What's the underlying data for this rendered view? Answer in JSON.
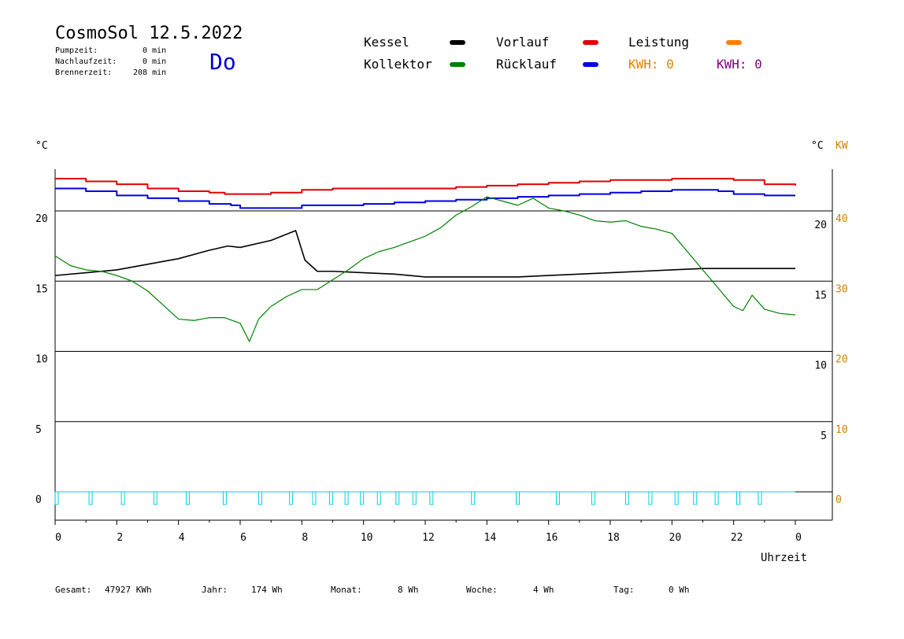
{
  "header": {
    "title": "CosmoSol 12.5.2022",
    "day": "Do",
    "pumpzeit_label": "Pumpzeit:",
    "pumpzeit_value": "0 min",
    "nachlauf_label": "Nachlaufzeit:",
    "nachlauf_value": "0 min",
    "brenner_label": "Brennerzeit:",
    "brenner_value": "208 min"
  },
  "legend": {
    "kessel": {
      "label": "Kessel",
      "color": "#000000"
    },
    "kollektor": {
      "label": "Kollektor",
      "color": "#008000"
    },
    "vorlauf": {
      "label": "Vorlauf",
      "color": "#e00000"
    },
    "ruecklauf": {
      "label": "Rücklauf",
      "color": "#0000e0"
    },
    "leistung": {
      "label": "Leistung",
      "color": "#ff8000"
    },
    "kwh1": {
      "label": "KWH: 0",
      "color": "#e08000"
    },
    "kwh2": {
      "label": "KWH: 0",
      "color": "#800080"
    }
  },
  "axes": {
    "left_unit": "°C",
    "right_unit": "°C",
    "right_unit2": "KW",
    "xlabel": "Uhrzeit"
  },
  "footer": {
    "gesamt_label": "Gesamt:",
    "gesamt_value": "47927 KWh",
    "jahr_label": "Jahr:",
    "jahr_value": "174 Wh",
    "monat_label": "Monat:",
    "monat_value": "8 Wh",
    "woche_label": "Woche:",
    "woche_value": "4 Wh",
    "tag_label": "Tag:",
    "tag_value": "0 Wh"
  },
  "chart_data": {
    "type": "line",
    "x_ticks": [
      "0",
      "2",
      "4",
      "6",
      "8",
      "10",
      "12",
      "14",
      "16",
      "18",
      "20",
      "22",
      "0"
    ],
    "x_range": [
      0,
      24
    ],
    "y_left_ticks": [
      "0",
      "5",
      "10",
      "15",
      "20"
    ],
    "y_right_ticks": [
      "5",
      "10",
      "15",
      "20"
    ],
    "y_right_kw_ticks": [
      "0",
      "10",
      "20",
      "30",
      "40"
    ],
    "ylim": [
      -2,
      23.5
    ],
    "grid": true,
    "series": [
      {
        "name": "Vorlauf",
        "color": "#e00000",
        "x": [
          0,
          1,
          2,
          3,
          4,
          5,
          5.5,
          6,
          7,
          8,
          9,
          10,
          11,
          12,
          13,
          14,
          15,
          16,
          17,
          18,
          19,
          20,
          21,
          21.5,
          22,
          23,
          24
        ],
        "y": [
          22.3,
          22.1,
          21.9,
          21.6,
          21.4,
          21.3,
          21.2,
          21.2,
          21.3,
          21.5,
          21.6,
          21.6,
          21.6,
          21.6,
          21.7,
          21.8,
          21.9,
          22.0,
          22.1,
          22.2,
          22.2,
          22.3,
          22.3,
          22.3,
          22.2,
          21.9,
          21.8
        ]
      },
      {
        "name": "Rücklauf",
        "color": "#0000e0",
        "x": [
          0,
          1,
          2,
          3,
          4,
          5,
          5.7,
          6,
          7,
          8,
          9,
          10,
          11,
          12,
          13,
          14,
          15,
          16,
          17,
          18,
          19,
          20,
          21,
          21.5,
          22,
          23,
          24
        ],
        "y": [
          21.6,
          21.4,
          21.1,
          20.9,
          20.7,
          20.5,
          20.4,
          20.2,
          20.2,
          20.4,
          20.4,
          20.5,
          20.6,
          20.7,
          20.8,
          20.9,
          21.0,
          21.1,
          21.2,
          21.3,
          21.4,
          21.5,
          21.5,
          21.4,
          21.2,
          21.1,
          21.1
        ]
      },
      {
        "name": "Kessel",
        "color": "#000000",
        "x": [
          0,
          1,
          2,
          3,
          4,
          5,
          5.6,
          6,
          7,
          7.8,
          8.1,
          8.5,
          9,
          10,
          11,
          12,
          13,
          14,
          15,
          16,
          17,
          18,
          19,
          20,
          21,
          22,
          23,
          24
        ],
        "y": [
          15.4,
          15.6,
          15.8,
          16.2,
          16.6,
          17.2,
          17.5,
          17.4,
          17.9,
          18.6,
          16.5,
          15.7,
          15.7,
          15.6,
          15.5,
          15.3,
          15.3,
          15.3,
          15.3,
          15.4,
          15.5,
          15.6,
          15.7,
          15.8,
          15.9,
          15.9,
          15.9,
          15.9
        ]
      },
      {
        "name": "Kollektor",
        "color": "#008000",
        "x": [
          0,
          0.5,
          1,
          1.5,
          2,
          2.5,
          3,
          3.5,
          4,
          4.5,
          5,
          5.5,
          6,
          6.3,
          6.6,
          7,
          7.5,
          8,
          8.5,
          9,
          9.5,
          10,
          10.5,
          11,
          11.5,
          12,
          12.5,
          13,
          13.5,
          14,
          14.5,
          15,
          15.5,
          16,
          16.5,
          17,
          17.5,
          18,
          18.5,
          19,
          19.5,
          20,
          20.5,
          21,
          21.5,
          22,
          22.3,
          22.6,
          23,
          23.5,
          24
        ],
        "y": [
          16.8,
          16.1,
          15.8,
          15.7,
          15.4,
          15.0,
          14.3,
          13.3,
          12.3,
          12.2,
          12.4,
          12.4,
          12.0,
          10.7,
          12.3,
          13.2,
          13.9,
          14.4,
          14.4,
          15.1,
          15.8,
          16.6,
          17.1,
          17.4,
          17.8,
          18.2,
          18.8,
          19.7,
          20.3,
          21.0,
          20.7,
          20.4,
          20.9,
          20.2,
          20.0,
          19.7,
          19.3,
          19.2,
          19.3,
          18.9,
          18.7,
          18.4,
          17.1,
          15.8,
          14.5,
          13.2,
          12.9,
          14.0,
          13.0,
          12.7,
          12.6
        ]
      },
      {
        "name": "Pumpe",
        "color": "#00d0e0",
        "pulses_x": [
          0.05,
          1.15,
          2.2,
          3.25,
          4.3,
          5.5,
          6.65,
          7.65,
          8.4,
          8.95,
          9.45,
          9.95,
          10.5,
          11.1,
          11.65,
          12.2,
          13.55,
          15.0,
          16.3,
          17.45,
          18.55,
          19.3,
          20.15,
          20.75,
          21.45,
          22.15,
          22.85
        ]
      }
    ]
  }
}
